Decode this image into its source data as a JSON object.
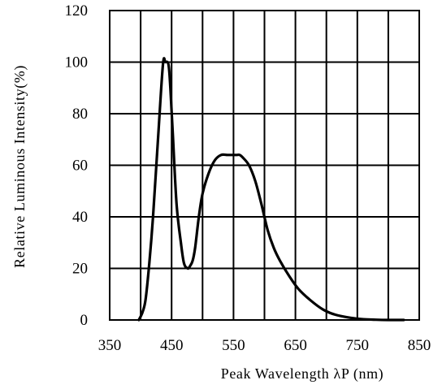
{
  "chart_data": {
    "type": "line",
    "title": "",
    "xlabel": "Peak Wavelength λP (nm)",
    "ylabel": "Relative Luminous Intensity(%)",
    "xlim": [
      350,
      850
    ],
    "ylim": [
      0,
      120
    ],
    "xticks": [
      350,
      450,
      550,
      650,
      750,
      850
    ],
    "yticks": [
      0,
      20,
      40,
      60,
      80,
      100,
      120
    ],
    "x_gridlines": [
      350,
      400,
      450,
      500,
      550,
      600,
      650,
      700,
      750,
      800,
      850
    ],
    "y_gridlines": [
      0,
      20,
      40,
      60,
      80,
      100,
      120
    ],
    "grid": true,
    "legend": "none",
    "line_color": "#000000",
    "series": [
      {
        "x": [
          397,
          403,
          408,
          414,
          420,
          428,
          436,
          440,
          445,
          448,
          452,
          458,
          465,
          470,
          476,
          480,
          484,
          488,
          494,
          500,
          510,
          520,
          530,
          540,
          550,
          555,
          560,
          565,
          575,
          585,
          595,
          605,
          615,
          625,
          640,
          655,
          675,
          695,
          715,
          740,
          760,
          780,
          800,
          815,
          825
        ],
        "y": [
          0,
          3,
          8,
          22,
          40,
          70,
          99,
          100,
          99,
          90,
          72,
          45,
          30,
          22,
          20,
          21,
          23,
          28,
          40,
          49,
          57,
          62,
          64,
          64,
          64,
          64,
          64,
          63,
          60,
          54,
          45,
          35,
          28,
          23,
          17,
          12,
          7.5,
          4,
          2,
          0.8,
          0.3,
          0.1,
          0,
          0,
          0
        ]
      }
    ]
  }
}
